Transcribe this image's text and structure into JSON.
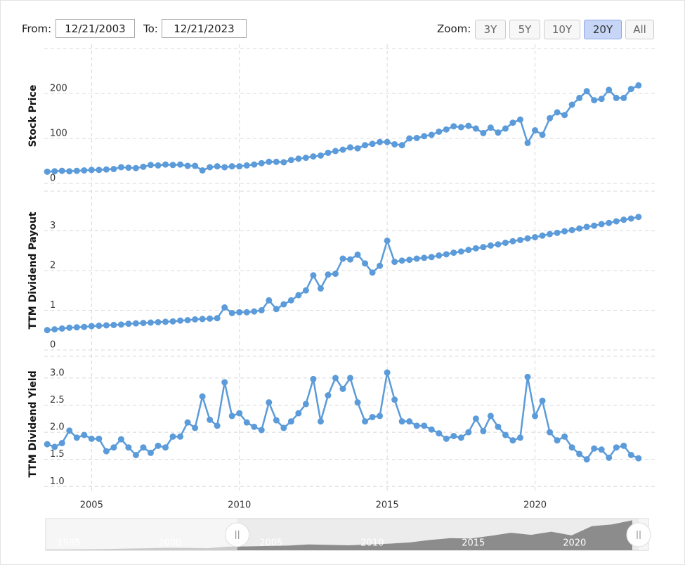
{
  "controls": {
    "from_label": "From:",
    "from": "12/21/2003",
    "to_label": "To:",
    "to": "12/21/2023",
    "zoom_label": "Zoom:",
    "zoom_buttons": [
      "3Y",
      "5Y",
      "10Y",
      "20Y",
      "All"
    ],
    "zoom_active": "20Y"
  },
  "chart_data": [
    {
      "type": "line",
      "color": "#5b9bd9",
      "grid": true,
      "x": [
        2003.5,
        2003.75,
        2004,
        2004.25,
        2004.5,
        2004.75,
        2005,
        2005.25,
        2005.5,
        2005.75,
        2006,
        2006.25,
        2006.5,
        2006.75,
        2007,
        2007.25,
        2007.5,
        2007.75,
        2008,
        2008.25,
        2008.5,
        2008.75,
        2009,
        2009.25,
        2009.5,
        2009.75,
        2010,
        2010.25,
        2010.5,
        2010.75,
        2011,
        2011.25,
        2011.5,
        2011.75,
        2012,
        2012.25,
        2012.5,
        2012.75,
        2013,
        2013.25,
        2013.5,
        2013.75,
        2014,
        2014.25,
        2014.5,
        2014.75,
        2015,
        2015.25,
        2015.5,
        2015.75,
        2016,
        2016.25,
        2016.5,
        2016.75,
        2017,
        2017.25,
        2017.5,
        2017.75,
        2018,
        2018.25,
        2018.5,
        2018.75,
        2019,
        2019.25,
        2019.5,
        2019.75,
        2020,
        2020.25,
        2020.5,
        2020.75,
        2021,
        2021.25,
        2021.5,
        2021.75,
        2022,
        2022.25,
        2022.5,
        2022.75,
        2023,
        2023.25,
        2023.5
      ],
      "xlim": [
        2003.4,
        2023.6
      ],
      "xticks": [
        2005,
        2010,
        2015,
        2020
      ],
      "panels": [
        {
          "ylabel": "Stock Price",
          "ylim": [
            0,
            300
          ],
          "yticks": [
            0,
            100,
            200
          ],
          "values": [
            26,
            27,
            28,
            27,
            28,
            29,
            30,
            30,
            31,
            32,
            36,
            35,
            34,
            37,
            41,
            40,
            42,
            41,
            42,
            39,
            39,
            29,
            36,
            38,
            36,
            38,
            38,
            40,
            42,
            45,
            48,
            48,
            47,
            52,
            55,
            57,
            60,
            62,
            68,
            72,
            75,
            80,
            78,
            85,
            88,
            92,
            92,
            87,
            85,
            100,
            101,
            105,
            108,
            115,
            120,
            127,
            125,
            128,
            122,
            112,
            124,
            113,
            122,
            135,
            142,
            90,
            118,
            108,
            145,
            158,
            152,
            175,
            190,
            205,
            185,
            188,
            208,
            190,
            190,
            210,
            218
          ]
        },
        {
          "ylabel": "TTM Dividend Payout",
          "ylim": [
            0,
            4
          ],
          "yticks": [
            0,
            1,
            2,
            3
          ],
          "values": [
            0.5,
            0.52,
            0.54,
            0.56,
            0.57,
            0.58,
            0.6,
            0.61,
            0.62,
            0.63,
            0.64,
            0.66,
            0.67,
            0.68,
            0.69,
            0.7,
            0.71,
            0.72,
            0.74,
            0.75,
            0.77,
            0.78,
            0.79,
            0.8,
            1.07,
            0.93,
            0.95,
            0.95,
            0.97,
            1.0,
            1.25,
            1.03,
            1.15,
            1.25,
            1.38,
            1.5,
            1.88,
            1.55,
            1.9,
            1.92,
            2.3,
            2.28,
            2.4,
            2.18,
            1.95,
            2.12,
            2.75,
            2.22,
            2.25,
            2.27,
            2.3,
            2.32,
            2.34,
            2.38,
            2.41,
            2.45,
            2.48,
            2.52,
            2.56,
            2.59,
            2.63,
            2.66,
            2.7,
            2.74,
            2.77,
            2.81,
            2.84,
            2.88,
            2.92,
            2.95,
            2.99,
            3.02,
            3.06,
            3.1,
            3.13,
            3.17,
            3.2,
            3.24,
            3.28,
            3.31,
            3.35
          ]
        },
        {
          "ylabel": "TTM Dividend Yield",
          "ylim": [
            0.9,
            3.4
          ],
          "yticks": [
            {
              "value": 1,
              "label": "1.0"
            },
            1.5,
            {
              "value": 2,
              "label": "2.0"
            },
            2.5,
            {
              "value": 3,
              "label": "3.0"
            }
          ],
          "values": [
            1.78,
            1.73,
            1.8,
            2.03,
            1.9,
            1.95,
            1.88,
            1.88,
            1.65,
            1.72,
            1.87,
            1.72,
            1.58,
            1.72,
            1.62,
            1.75,
            1.72,
            1.92,
            1.92,
            2.18,
            2.08,
            2.66,
            2.23,
            2.12,
            2.92,
            2.3,
            2.35,
            2.18,
            2.1,
            2.04,
            2.55,
            2.22,
            2.08,
            2.2,
            2.35,
            2.52,
            2.98,
            2.2,
            2.68,
            3.0,
            2.8,
            3.0,
            2.55,
            2.2,
            2.28,
            2.3,
            3.1,
            2.6,
            2.2,
            2.2,
            2.12,
            2.12,
            2.05,
            1.98,
            1.88,
            1.93,
            1.9,
            2.0,
            2.25,
            2.02,
            2.3,
            2.1,
            1.95,
            1.85,
            1.9,
            3.02,
            2.3,
            2.58,
            2.0,
            1.85,
            1.92,
            1.72,
            1.6,
            1.5,
            1.7,
            1.68,
            1.53,
            1.72,
            1.75,
            1.58,
            1.52
          ]
        }
      ]
    },
    {
      "type": "area",
      "color": "#8c8c8c",
      "x": [
        1994.5,
        1995.5,
        1996.5,
        1997.5,
        1998.5,
        1999.5,
        2000.5,
        2001.5,
        2002.5,
        2003.5,
        2004.5,
        2005.5,
        2006.5,
        2007.5,
        2008.5,
        2009.5,
        2010.5,
        2011.5,
        2012.5,
        2013.5,
        2014.5,
        2015.5,
        2016.5,
        2017.5,
        2018.5,
        2019.5,
        2020.5,
        2021.5,
        2022.5,
        2023.5
      ],
      "values": [
        5,
        6,
        7,
        9,
        12,
        15,
        18,
        17,
        15,
        26,
        28,
        31,
        34,
        42,
        39,
        36,
        42,
        48,
        57,
        75,
        88,
        85,
        105,
        127,
        112,
        135,
        108,
        175,
        188,
        218
      ],
      "xlim": [
        1994.5,
        2024.3
      ],
      "ylim": [
        0,
        230
      ],
      "xticks": [
        1995,
        2000,
        2005,
        2010,
        2015,
        2020
      ]
    }
  ]
}
